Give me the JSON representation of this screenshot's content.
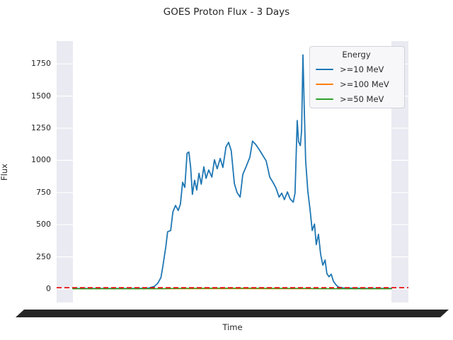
{
  "chart_data": {
    "type": "line",
    "title": "GOES Proton Flux - 3 Days",
    "xlabel": "Time",
    "ylabel": "Flux",
    "x_axis": {
      "span_days": 3,
      "unit": "hours",
      "range": [
        0,
        72
      ],
      "tick_render_note": "x tick labels overlap into a solid black band below the axis"
    },
    "ylim": [
      -105,
      1930
    ],
    "yticks": [
      0,
      250,
      500,
      750,
      1000,
      1250,
      1500,
      1750
    ],
    "grid": true,
    "plot_background_color": "#eaeaf2",
    "gridline_color": "#ffffff",
    "legend": {
      "title": "Energy",
      "position": "upper-right"
    },
    "threshold_line": {
      "value": 10,
      "color": "#e50000",
      "style": "dashed"
    },
    "series": [
      {
        "name": ">=10 MeV",
        "color": "#1f77b4",
        "points": [
          [
            0,
            4
          ],
          [
            6,
            4
          ],
          [
            12,
            4
          ],
          [
            15,
            5
          ],
          [
            17,
            6
          ],
          [
            18.4,
            20
          ],
          [
            19.2,
            45
          ],
          [
            19.9,
            90
          ],
          [
            20.3,
            170
          ],
          [
            21,
            330
          ],
          [
            21.4,
            445
          ],
          [
            22.1,
            455
          ],
          [
            22.6,
            600
          ],
          [
            23.2,
            650
          ],
          [
            23.8,
            610
          ],
          [
            24.3,
            660
          ],
          [
            24.8,
            830
          ],
          [
            25.3,
            790
          ],
          [
            25.8,
            1055
          ],
          [
            26.2,
            1065
          ],
          [
            26.6,
            950
          ],
          [
            27,
            735
          ],
          [
            27.5,
            845
          ],
          [
            28,
            770
          ],
          [
            28.5,
            900
          ],
          [
            29,
            815
          ],
          [
            29.6,
            950
          ],
          [
            30.1,
            860
          ],
          [
            30.7,
            925
          ],
          [
            31.4,
            870
          ],
          [
            32,
            1005
          ],
          [
            32.6,
            935
          ],
          [
            33.3,
            1015
          ],
          [
            33.9,
            945
          ],
          [
            34.6,
            1105
          ],
          [
            35.2,
            1140
          ],
          [
            35.8,
            1075
          ],
          [
            36.5,
            820
          ],
          [
            37.1,
            750
          ],
          [
            37.8,
            715
          ],
          [
            38.4,
            890
          ],
          [
            39.2,
            955
          ],
          [
            40,
            1025
          ],
          [
            40.6,
            1150
          ],
          [
            41.3,
            1125
          ],
          [
            42.1,
            1085
          ],
          [
            42.9,
            1040
          ],
          [
            43.7,
            995
          ],
          [
            44.5,
            870
          ],
          [
            45.3,
            825
          ],
          [
            45.9,
            785
          ],
          [
            46.6,
            715
          ],
          [
            47.2,
            745
          ],
          [
            47.8,
            695
          ],
          [
            48.5,
            755
          ],
          [
            49.1,
            700
          ],
          [
            49.8,
            675
          ],
          [
            50.2,
            745
          ],
          [
            50.7,
            1310
          ],
          [
            51,
            1145
          ],
          [
            51.4,
            1115
          ],
          [
            51.7,
            1230
          ],
          [
            52,
            1820
          ],
          [
            52.3,
            1400
          ],
          [
            52.6,
            1000
          ],
          [
            53.1,
            760
          ],
          [
            53.6,
            620
          ],
          [
            54.1,
            455
          ],
          [
            54.6,
            505
          ],
          [
            55,
            345
          ],
          [
            55.5,
            425
          ],
          [
            56,
            270
          ],
          [
            56.5,
            185
          ],
          [
            57,
            225
          ],
          [
            57.4,
            120
          ],
          [
            57.9,
            95
          ],
          [
            58.4,
            115
          ],
          [
            58.9,
            60
          ],
          [
            59.4,
            35
          ],
          [
            60,
            15
          ],
          [
            61.1,
            8
          ],
          [
            63.5,
            6
          ],
          [
            66.7,
            5
          ],
          [
            72,
            5
          ]
        ]
      },
      {
        "name": ">=100 MeV",
        "color": "#ff7f0e",
        "points": [
          [
            0,
            1
          ],
          [
            20,
            1
          ],
          [
            24,
            2
          ],
          [
            36,
            3
          ],
          [
            48,
            2
          ],
          [
            56,
            2
          ],
          [
            60,
            1
          ],
          [
            72,
            1
          ]
        ]
      },
      {
        "name": ">=50 MeV",
        "color": "#2ca02c",
        "points": [
          [
            0,
            2
          ],
          [
            16,
            2
          ],
          [
            20,
            3
          ],
          [
            24,
            5
          ],
          [
            32,
            6
          ],
          [
            40,
            6
          ],
          [
            48,
            5
          ],
          [
            52,
            5
          ],
          [
            56,
            3
          ],
          [
            60,
            2
          ],
          [
            72,
            2
          ]
        ]
      }
    ]
  }
}
